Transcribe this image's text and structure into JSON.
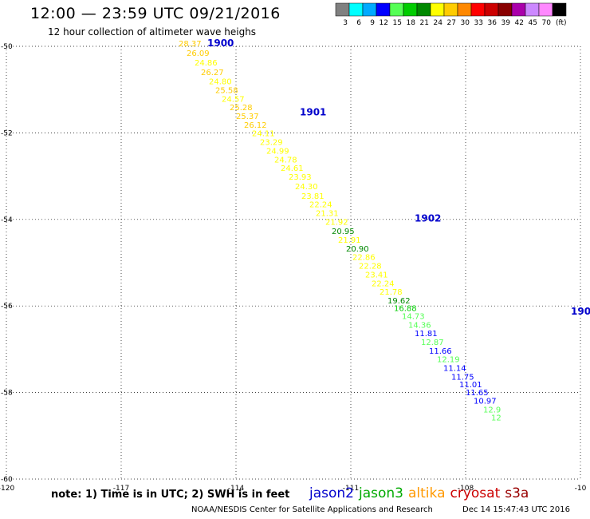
{
  "header": {
    "title": "12:00 — 23:59 UTC 09/21/2016",
    "subtitle": "12 hour collection of altimeter wave heighs"
  },
  "color_scale": {
    "unit_label": "(ft)",
    "bins": [
      {
        "label": "3",
        "color": "#808080"
      },
      {
        "label": "6",
        "color": "#00ffff"
      },
      {
        "label": "9",
        "color": "#00aaff"
      },
      {
        "label": "12",
        "color": "#0000ff"
      },
      {
        "label": "15",
        "color": "#55ff55"
      },
      {
        "label": "18",
        "color": "#00cc00"
      },
      {
        "label": "21",
        "color": "#008800"
      },
      {
        "label": "24",
        "color": "#ffff00"
      },
      {
        "label": "27",
        "color": "#ffcc00"
      },
      {
        "label": "30",
        "color": "#ff8800"
      },
      {
        "label": "33",
        "color": "#ff0000"
      },
      {
        "label": "36",
        "color": "#cc0000"
      },
      {
        "label": "39",
        "color": "#880000"
      },
      {
        "label": "42",
        "color": "#aa00aa"
      },
      {
        "label": "45",
        "color": "#cc88ff"
      },
      {
        "label": "70",
        "color": "#ff88ff"
      },
      {
        "label": "",
        "color": "#000000"
      }
    ]
  },
  "map": {
    "lon_range": [
      -120,
      -102
    ],
    "lat_range": [
      -60,
      -50
    ],
    "x_ticks": [
      "-120",
      "-117",
      "-114",
      "-111",
      "-108",
      "-10"
    ],
    "y_ticks": [
      "-50",
      "-52",
      "-54",
      "-56",
      "-58",
      "-60"
    ],
    "time_labels": [
      {
        "text": "1900",
        "lon": -113.7,
        "lat": -50.0
      },
      {
        "text": "1901",
        "lon": -110.8,
        "lat": -51.6
      },
      {
        "text": "1902",
        "lon": -107.2,
        "lat": -54.05
      },
      {
        "text": "190",
        "lon": -102.3,
        "lat": -56.2
      }
    ],
    "wave_heights": [
      {
        "value": "28.37",
        "lon": -114.6,
        "lat": -50.0,
        "color": "#ffcc00"
      },
      {
        "value": "26.09",
        "lon": -114.35,
        "lat": -50.22,
        "color": "#ffcc00"
      },
      {
        "value": "24.86",
        "lon": -114.1,
        "lat": -50.44,
        "color": "#ffff00"
      },
      {
        "value": "26.27",
        "lon": -113.9,
        "lat": -50.66,
        "color": "#ffcc00"
      },
      {
        "value": "24.80",
        "lon": -113.65,
        "lat": -50.88,
        "color": "#ffff00"
      },
      {
        "value": "25.58",
        "lon": -113.45,
        "lat": -51.08,
        "color": "#ffcc00"
      },
      {
        "value": "24.57",
        "lon": -113.25,
        "lat": -51.28,
        "color": "#ffff00"
      },
      {
        "value": "25.28",
        "lon": -113.0,
        "lat": -51.48,
        "color": "#ffcc00"
      },
      {
        "value": "25.37",
        "lon": -112.8,
        "lat": -51.68,
        "color": "#ffcc00"
      },
      {
        "value": "26.12",
        "lon": -112.55,
        "lat": -51.88,
        "color": "#ffcc00"
      },
      {
        "value": "24.11",
        "lon": -112.3,
        "lat": -52.08,
        "color": "#ffff00"
      },
      {
        "value": "23.29",
        "lon": -112.05,
        "lat": -52.28,
        "color": "#ffff00"
      },
      {
        "value": "24.99",
        "lon": -111.85,
        "lat": -52.48,
        "color": "#ffff00"
      },
      {
        "value": "24.78",
        "lon": -111.6,
        "lat": -52.68,
        "color": "#ffff00"
      },
      {
        "value": "24.61",
        "lon": -111.4,
        "lat": -52.88,
        "color": "#ffff00"
      },
      {
        "value": "23.93",
        "lon": -111.15,
        "lat": -53.08,
        "color": "#ffff00"
      },
      {
        "value": "24.30",
        "lon": -110.95,
        "lat": -53.3,
        "color": "#ffff00"
      },
      {
        "value": "23.81",
        "lon": -110.75,
        "lat": -53.52,
        "color": "#ffff00"
      },
      {
        "value": "22.24",
        "lon": -110.5,
        "lat": -53.72,
        "color": "#ffff00"
      },
      {
        "value": "21.31",
        "lon": -110.3,
        "lat": -53.92,
        "color": "#ffff00"
      },
      {
        "value": "21.92",
        "lon": -110.0,
        "lat": -54.12,
        "color": "#ffff00"
      },
      {
        "value": "20.95",
        "lon": -109.8,
        "lat": -54.34,
        "color": "#008800"
      },
      {
        "value": "21.91",
        "lon": -109.6,
        "lat": -54.54,
        "color": "#ffff00"
      },
      {
        "value": "20.90",
        "lon": -109.35,
        "lat": -54.74,
        "color": "#008800"
      },
      {
        "value": "22.86",
        "lon": -109.15,
        "lat": -54.94,
        "color": "#ffff00"
      },
      {
        "value": "22.28",
        "lon": -108.95,
        "lat": -55.14,
        "color": "#ffff00"
      },
      {
        "value": "23.41",
        "lon": -108.75,
        "lat": -55.34,
        "color": "#ffff00"
      },
      {
        "value": "22.24",
        "lon": -108.55,
        "lat": -55.54,
        "color": "#ffff00"
      },
      {
        "value": "21.78",
        "lon": -108.3,
        "lat": -55.74,
        "color": "#ffff00"
      },
      {
        "value": "19.62",
        "lon": -108.05,
        "lat": -55.94,
        "color": "#008800"
      },
      {
        "value": "16.88",
        "lon": -107.85,
        "lat": -56.12,
        "color": "#00cc00"
      },
      {
        "value": "14.73",
        "lon": -107.6,
        "lat": -56.3,
        "color": "#55ff55"
      },
      {
        "value": "14.36",
        "lon": -107.4,
        "lat": -56.5,
        "color": "#55ff55"
      },
      {
        "value": "11.81",
        "lon": -107.2,
        "lat": -56.7,
        "color": "#0000ff"
      },
      {
        "value": "12.87",
        "lon": -107.0,
        "lat": -56.9,
        "color": "#55ff55"
      },
      {
        "value": "11.66",
        "lon": -106.75,
        "lat": -57.1,
        "color": "#0000ff"
      },
      {
        "value": "12.19",
        "lon": -106.5,
        "lat": -57.3,
        "color": "#55ff55"
      },
      {
        "value": "11.14",
        "lon": -106.3,
        "lat": -57.5,
        "color": "#0000ff"
      },
      {
        "value": "11.75",
        "lon": -106.05,
        "lat": -57.7,
        "color": "#0000ff"
      },
      {
        "value": "11.01",
        "lon": -105.8,
        "lat": -57.88,
        "color": "#0000ff"
      },
      {
        "value": "11.65",
        "lon": -105.6,
        "lat": -58.06,
        "color": "#0000ff"
      },
      {
        "value": "10.97",
        "lon": -105.35,
        "lat": -58.26,
        "color": "#0000ff"
      },
      {
        "value": "12.9",
        "lon": -105.05,
        "lat": -58.46,
        "color": "#55ff55"
      },
      {
        "value": "12",
        "lon": -104.8,
        "lat": -58.64,
        "color": "#55ff55"
      }
    ]
  },
  "footer": {
    "note": "note: 1) Time is in UTC; 2) SWH is in feet",
    "satellites": [
      {
        "name": "jason2",
        "color": "#0000cc"
      },
      {
        "name": "jason3",
        "color": "#00aa00"
      },
      {
        "name": "altika",
        "color": "#ff9900"
      },
      {
        "name": "cryosat",
        "color": "#cc0000"
      },
      {
        "name": "s3a",
        "color": "#990000"
      }
    ],
    "credit": "NOAA/NESDIS Center for Satellite Applications and Research",
    "timestamp": "Dec 14 15:47:43 UTC 2016"
  }
}
